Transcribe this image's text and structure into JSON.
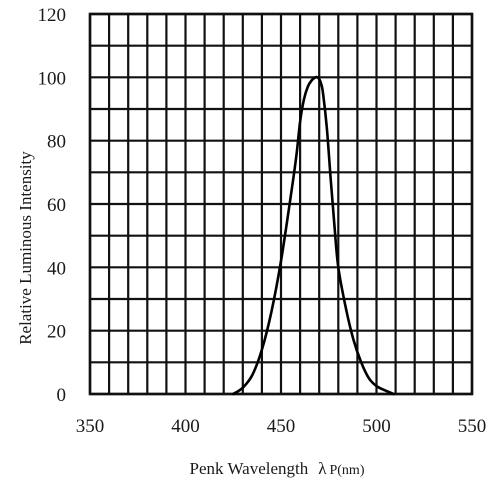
{
  "chart_data": {
    "type": "line",
    "title": "",
    "xlabel_main": "Penk Wavelength",
    "xlabel_sym": "λ",
    "xlabel_sub": "P(nm)",
    "ylabel": "Relative Luminous Intensity",
    "xlim": [
      350,
      550
    ],
    "ylim": [
      0,
      120
    ],
    "x_ticks": [
      350,
      400,
      450,
      500,
      550
    ],
    "y_ticks": [
      0,
      20,
      40,
      60,
      80,
      100,
      120
    ],
    "x_tick_labels": [
      "350",
      "400",
      "450",
      "500",
      "550"
    ],
    "y_tick_labels": [
      "0",
      "20",
      "40",
      "60",
      "80",
      "100",
      "120"
    ],
    "grid": true,
    "grid_x_step": 10,
    "grid_y_step": 10,
    "series": [
      {
        "x": [
          425,
          430,
          435,
          440,
          445,
          450,
          455,
          458,
          460,
          462,
          464,
          466,
          468,
          469,
          470,
          471,
          472,
          474,
          476,
          478,
          480,
          484,
          488,
          492,
          496,
          500,
          505,
          509
        ],
        "y": [
          0,
          2,
          6,
          14,
          26,
          42,
          62,
          75,
          86,
          93,
          97,
          99,
          100,
          100,
          99.5,
          98,
          95,
          84,
          68,
          53,
          40,
          27,
          17,
          10,
          5,
          2.5,
          1,
          0
        ]
      }
    ]
  }
}
